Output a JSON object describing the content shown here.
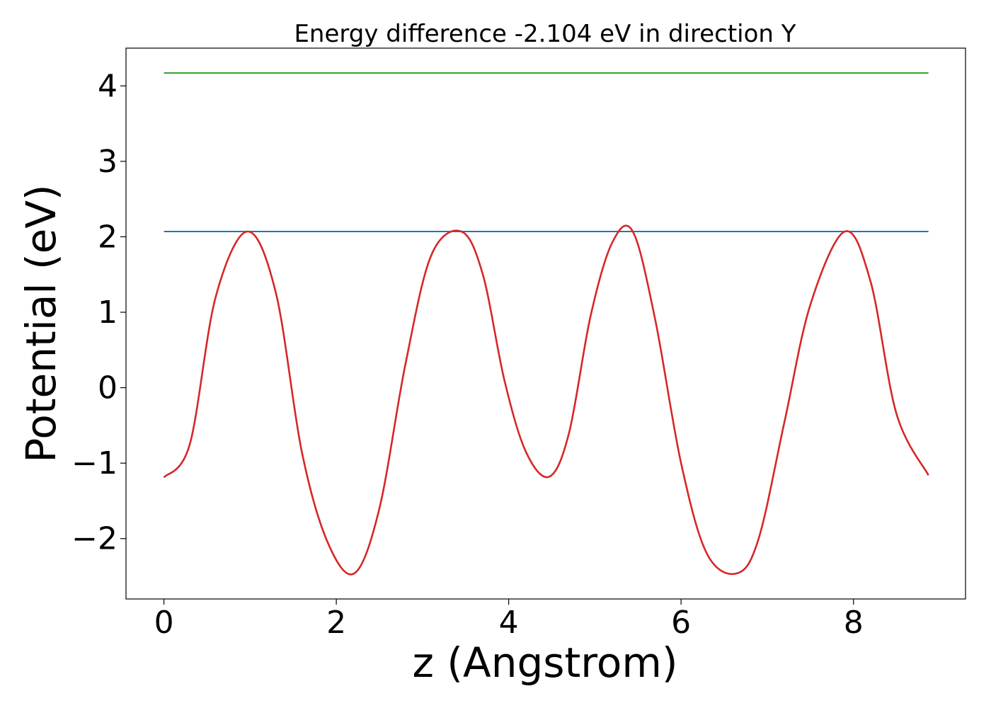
{
  "chart_data": {
    "type": "line",
    "title": "Energy difference -2.104 eV in direction Y",
    "xlabel": "z (Angstrom)",
    "ylabel": "Potential (eV)",
    "xlim": [
      -0.44,
      9.3
    ],
    "ylim": [
      -2.8,
      4.5
    ],
    "x_ticks": [
      0,
      2,
      4,
      6,
      8
    ],
    "x_tick_labels": [
      "0",
      "2",
      "4",
      "6",
      "8"
    ],
    "y_ticks": [
      -2,
      -1,
      0,
      1,
      2,
      3,
      4
    ],
    "y_tick_labels": [
      "−2",
      "−1",
      "0",
      "1",
      "2",
      "3",
      "4"
    ],
    "grid": false,
    "legend": "none",
    "series": [
      {
        "color": "#2ca02c",
        "x": [
          0,
          8.87
        ],
        "y": [
          4.17,
          4.17
        ]
      },
      {
        "color": "#1f77b4",
        "x": [
          0,
          8.87
        ],
        "y": [
          2.07,
          2.07
        ]
      },
      {
        "color": "#d62728",
        "x": [
          0,
          0.3,
          0.6,
          0.97,
          1.3,
          1.6,
          1.9,
          2.21,
          2.5,
          2.8,
          3.1,
          3.45,
          3.7,
          3.95,
          4.2,
          4.47,
          4.7,
          4.95,
          5.2,
          5.44,
          5.7,
          6.0,
          6.3,
          6.65,
          6.9,
          7.2,
          7.5,
          7.9,
          8.2,
          8.5,
          8.87
        ],
        "y": [
          -1.19,
          -0.75,
          1.2,
          2.07,
          1.25,
          -0.85,
          -2.05,
          -2.46,
          -1.6,
          0.3,
          1.75,
          2.07,
          1.5,
          0.1,
          -0.85,
          -1.18,
          -0.6,
          0.95,
          1.92,
          2.07,
          0.9,
          -1.0,
          -2.2,
          -2.46,
          -2.0,
          -0.45,
          1.1,
          2.07,
          1.4,
          -0.35,
          -1.16
        ]
      }
    ]
  }
}
